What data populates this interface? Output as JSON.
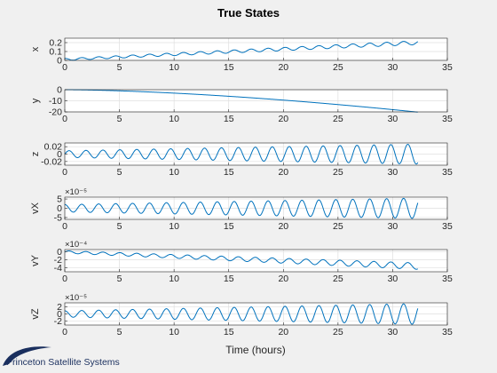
{
  "figure": {
    "title": "True States",
    "xlabel": "Time (hours)",
    "logo_text": "Princeton Satellite Systems"
  },
  "colors": {
    "line": "#0072bd",
    "grid": "#dfdfdf",
    "axis": "#262626",
    "background": "#f0f0f0",
    "axes_bg": "#ffffff",
    "logo": "#1a2f5e"
  },
  "chart_data": [
    {
      "type": "line",
      "ylabel": "x",
      "xlim": [
        0,
        35
      ],
      "ylim": [
        0,
        0.25
      ],
      "grid": true,
      "xticks": [
        "0",
        "5",
        "10",
        "15",
        "20",
        "25",
        "30",
        "35"
      ],
      "yticks": [
        {
          "v": 0.2,
          "label": "0.2"
        },
        {
          "v": 0.1,
          "label": "0.1"
        },
        {
          "v": 0,
          "label": "0"
        }
      ],
      "exponent": "",
      "series": [
        {
          "model": "osc",
          "t_end": 32.3,
          "period": 1.55,
          "amp0": 0.012,
          "amp1": 0.022,
          "base0": 0.01,
          "base1": 0.2,
          "phase": 1.57
        }
      ]
    },
    {
      "type": "line",
      "ylabel": "y",
      "xlim": [
        0,
        35
      ],
      "ylim": [
        -20,
        0
      ],
      "grid": true,
      "xticks": [
        "0",
        "5",
        "10",
        "15",
        "20",
        "25",
        "30",
        "35"
      ],
      "yticks": [
        {
          "v": 0,
          "label": "0"
        },
        {
          "v": -10,
          "label": "-10"
        },
        {
          "v": -20,
          "label": "-20"
        }
      ],
      "exponent": "",
      "series": [
        {
          "model": "drift",
          "t_end": 32.3,
          "start": 0,
          "end": -20.2,
          "power": 1.6
        }
      ]
    },
    {
      "type": "line",
      "ylabel": "z",
      "xlim": [
        0,
        35
      ],
      "ylim": [
        -0.03,
        0.03
      ],
      "grid": true,
      "xticks": [
        "0",
        "5",
        "10",
        "15",
        "20",
        "25",
        "30",
        "35"
      ],
      "yticks": [
        {
          "v": 0.02,
          "label": "0.02"
        },
        {
          "v": 0,
          "label": "0"
        },
        {
          "v": -0.02,
          "label": "-0.02"
        }
      ],
      "exponent": "",
      "series": [
        {
          "model": "osc",
          "t_end": 32.3,
          "period": 1.55,
          "amp0": 0.009,
          "amp1": 0.027,
          "base0": 0,
          "base1": 0,
          "phase": 0
        }
      ]
    },
    {
      "type": "line",
      "ylabel": "vX",
      "xlim": [
        0,
        35
      ],
      "ylim": [
        -6,
        6
      ],
      "grid": true,
      "xticks": [
        "0",
        "5",
        "10",
        "15",
        "20",
        "25",
        "30",
        "35"
      ],
      "yticks": [
        {
          "v": 5,
          "label": "5"
        },
        {
          "v": 0,
          "label": "0"
        },
        {
          "v": -5,
          "label": "-5"
        }
      ],
      "exponent": "×10⁻⁵",
      "series": [
        {
          "model": "osc",
          "t_end": 32.3,
          "period": 1.55,
          "amp0": 2.0,
          "amp1": 5.5,
          "base0": 0,
          "base1": 0,
          "phase": 1.57
        }
      ]
    },
    {
      "type": "line",
      "ylabel": "vY",
      "xlim": [
        0,
        35
      ],
      "ylim": [
        -5,
        0.5
      ],
      "grid": true,
      "xticks": [
        "0",
        "5",
        "10",
        "15",
        "20",
        "25",
        "30",
        "35"
      ],
      "yticks": [
        {
          "v": 0,
          "label": "0"
        },
        {
          "v": -2,
          "label": "-2"
        },
        {
          "v": -4,
          "label": "-4"
        }
      ],
      "exponent": "×10⁻⁴",
      "series": [
        {
          "model": "osc",
          "t_end": 32.3,
          "period": 1.55,
          "amp0": 0.3,
          "amp1": 0.8,
          "base0": -0.1,
          "base1": -3.6,
          "phase": 0
        }
      ]
    },
    {
      "type": "line",
      "ylabel": "vZ",
      "xlim": [
        0,
        35
      ],
      "ylim": [
        -3.2,
        3.2
      ],
      "grid": true,
      "xticks": [
        "0",
        "5",
        "10",
        "15",
        "20",
        "25",
        "30",
        "35"
      ],
      "yticks": [
        {
          "v": 2,
          "label": "2"
        },
        {
          "v": 0,
          "label": "0"
        },
        {
          "v": -2,
          "label": "-2"
        }
      ],
      "exponent": "×10⁻⁵",
      "series": [
        {
          "model": "osc",
          "t_end": 32.3,
          "period": 1.55,
          "amp0": 0.9,
          "amp1": 3.0,
          "base0": 0,
          "base1": 0,
          "phase": 1.57
        }
      ]
    }
  ]
}
